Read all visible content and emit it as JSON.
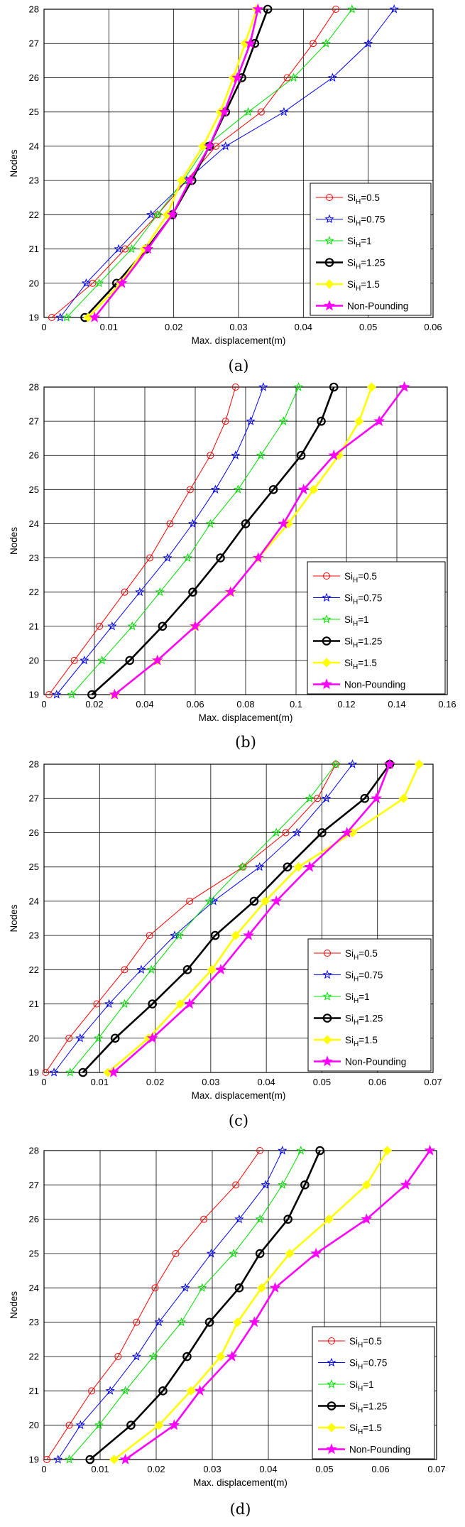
{
  "chart_data": [
    {
      "type": "line",
      "caption": "(a)",
      "xlabel": "Max. displacement(m)",
      "ylabel": "Nodes",
      "xlim": [
        0,
        0.06
      ],
      "ylim": [
        19,
        28
      ],
      "xticks": [
        "0",
        "0.01",
        "0.02",
        "0.03",
        "0.04",
        "0.05",
        "0.06"
      ],
      "yticks": [
        "19",
        "20",
        "21",
        "22",
        "23",
        "24",
        "25",
        "26",
        "27",
        "28"
      ],
      "grid": true,
      "legend_position": "bottom-right",
      "nodes": [
        19,
        20,
        21,
        22,
        23,
        24,
        25,
        26,
        27,
        28
      ],
      "series": [
        {
          "name_main": "Si",
          "name_sub": "H",
          "name_rest": "=0.5",
          "color": "#ff0000",
          "marker": "circle",
          "bold": false,
          "values": [
            0.0012,
            0.0075,
            0.0125,
            0.0175,
            0.022,
            0.0265,
            0.0335,
            0.0375,
            0.0415,
            0.045
          ]
        },
        {
          "name_main": "Si",
          "name_sub": "H",
          "name_rest": "=0.75",
          "color": "#0000ff",
          "marker": "star",
          "bold": false,
          "values": [
            0.0025,
            0.0065,
            0.0115,
            0.0165,
            0.022,
            0.028,
            0.037,
            0.0445,
            0.05,
            0.054
          ]
        },
        {
          "name_main": "Si",
          "name_sub": "H",
          "name_rest": "=1",
          "color": "#00dd00",
          "marker": "star",
          "bold": false,
          "values": [
            0.0035,
            0.0085,
            0.0135,
            0.0175,
            0.0215,
            0.025,
            0.0315,
            0.0385,
            0.0435,
            0.0475
          ]
        },
        {
          "name_main": "Si",
          "name_sub": "H",
          "name_rest": "=1.25",
          "color": "#000000",
          "marker": "circle",
          "bold": true,
          "values": [
            0.0063,
            0.0112,
            0.0158,
            0.0198,
            0.0228,
            0.0255,
            0.028,
            0.0305,
            0.0325,
            0.0345
          ]
        },
        {
          "name_main": "Si",
          "name_sub": "H",
          "name_rest": "=1.5",
          "color": "#ffff00",
          "marker": "diamond",
          "bold": true,
          "values": [
            0.0068,
            0.0118,
            0.0155,
            0.019,
            0.0212,
            0.0245,
            0.0272,
            0.0292,
            0.031,
            0.0328
          ]
        },
        {
          "name_main": "Non-Pounding",
          "name_sub": "",
          "name_rest": "",
          "color": "#ff00ff",
          "marker": "star",
          "bold": true,
          "values": [
            0.0078,
            0.012,
            0.016,
            0.0198,
            0.0225,
            0.0255,
            0.0278,
            0.0298,
            0.0318,
            0.033
          ]
        }
      ]
    },
    {
      "type": "line",
      "caption": "(b)",
      "xlabel": "Max. displacement(m)",
      "ylabel": "Nodes",
      "xlim": [
        0,
        0.16
      ],
      "ylim": [
        19,
        28
      ],
      "xticks": [
        "0",
        "0.02",
        "0.04",
        "0.06",
        "0.08",
        "0.1",
        "0.12",
        "0.14",
        "0.16"
      ],
      "yticks": [
        "19",
        "20",
        "21",
        "22",
        "23",
        "24",
        "25",
        "26",
        "27",
        "28"
      ],
      "grid": true,
      "legend_position": "bottom-right",
      "nodes": [
        19,
        20,
        21,
        22,
        23,
        24,
        25,
        26,
        27,
        28
      ],
      "series": [
        {
          "name_main": "Si",
          "name_sub": "H",
          "name_rest": "=0.5",
          "color": "#ff0000",
          "marker": "circle",
          "bold": false,
          "values": [
            0.002,
            0.012,
            0.022,
            0.032,
            0.042,
            0.05,
            0.058,
            0.066,
            0.072,
            0.076
          ]
        },
        {
          "name_main": "Si",
          "name_sub": "H",
          "name_rest": "=0.75",
          "color": "#0000ff",
          "marker": "star",
          "bold": false,
          "values": [
            0.005,
            0.016,
            0.027,
            0.038,
            0.049,
            0.059,
            0.068,
            0.076,
            0.082,
            0.087
          ]
        },
        {
          "name_main": "Si",
          "name_sub": "H",
          "name_rest": "=1",
          "color": "#00dd00",
          "marker": "star",
          "bold": false,
          "values": [
            0.011,
            0.023,
            0.035,
            0.046,
            0.057,
            0.066,
            0.077,
            0.086,
            0.095,
            0.101
          ]
        },
        {
          "name_main": "Si",
          "name_sub": "H",
          "name_rest": "=1.25",
          "color": "#000000",
          "marker": "circle",
          "bold": true,
          "values": [
            0.019,
            0.034,
            0.047,
            0.059,
            0.07,
            0.08,
            0.091,
            0.102,
            0.11,
            0.115
          ]
        },
        {
          "name_main": "Si",
          "name_sub": "H",
          "name_rest": "=1.5",
          "color": "#ffff00",
          "marker": "diamond",
          "bold": true,
          "values": [
            0.028,
            0.045,
            0.06,
            0.074,
            0.085,
            0.097,
            0.107,
            0.117,
            0.125,
            0.13
          ]
        },
        {
          "name_main": "Non-Pounding",
          "name_sub": "",
          "name_rest": "",
          "color": "#ff00ff",
          "marker": "star",
          "bold": true,
          "values": [
            0.028,
            0.045,
            0.06,
            0.074,
            0.085,
            0.095,
            0.103,
            0.115,
            0.133,
            0.143
          ]
        }
      ]
    },
    {
      "type": "line",
      "caption": "(c)",
      "xlabel": "Max. displacement(m)",
      "ylabel": "Nodes",
      "xlim": [
        0,
        0.07
      ],
      "ylim": [
        19,
        28
      ],
      "xticks": [
        "0",
        "0.01",
        "0.02",
        "0.03",
        "0.04",
        "0.05",
        "0.06",
        "0.07"
      ],
      "yticks": [
        "19",
        "20",
        "21",
        "22",
        "23",
        "24",
        "25",
        "26",
        "27",
        "28"
      ],
      "grid": true,
      "legend_position": "bottom-right",
      "nodes": [
        19,
        20,
        21,
        22,
        23,
        24,
        25,
        26,
        27,
        28
      ],
      "series": [
        {
          "name_main": "Si",
          "name_sub": "H",
          "name_rest": "=0.5",
          "color": "#ff0000",
          "marker": "circle",
          "bold": false,
          "values": [
            0.0003,
            0.0045,
            0.0095,
            0.0145,
            0.019,
            0.0262,
            0.0358,
            0.0435,
            0.0492,
            0.0525
          ]
        },
        {
          "name_main": "Si",
          "name_sub": "H",
          "name_rest": "=0.75",
          "color": "#0000ff",
          "marker": "star",
          "bold": false,
          "values": [
            0.0018,
            0.0065,
            0.0117,
            0.0175,
            0.0235,
            0.0305,
            0.0388,
            0.0455,
            0.0508,
            0.0555
          ]
        },
        {
          "name_main": "Si",
          "name_sub": "H",
          "name_rest": "=1",
          "color": "#00dd00",
          "marker": "star",
          "bold": false,
          "values": [
            0.0047,
            0.0098,
            0.0145,
            0.0193,
            0.0243,
            0.0298,
            0.0357,
            0.0418,
            0.0478,
            0.0525
          ]
        },
        {
          "name_main": "Si",
          "name_sub": "H",
          "name_rest": "=1.25",
          "color": "#000000",
          "marker": "circle",
          "bold": true,
          "values": [
            0.007,
            0.0128,
            0.0195,
            0.0258,
            0.0308,
            0.0378,
            0.0438,
            0.05,
            0.0577,
            0.0622
          ]
        },
        {
          "name_main": "Si",
          "name_sub": "H",
          "name_rest": "=1.5",
          "color": "#ffff00",
          "marker": "diamond",
          "bold": true,
          "values": [
            0.0115,
            0.0188,
            0.0245,
            0.0302,
            0.0345,
            0.0398,
            0.0458,
            0.0555,
            0.0647,
            0.0675
          ]
        },
        {
          "name_main": "Non-Pounding",
          "name_sub": "",
          "name_rest": "",
          "color": "#ff00ff",
          "marker": "star",
          "bold": true,
          "values": [
            0.0125,
            0.0195,
            0.0262,
            0.0318,
            0.0368,
            0.0418,
            0.0478,
            0.0545,
            0.0598,
            0.0622
          ]
        }
      ]
    },
    {
      "type": "line",
      "caption": "(d)",
      "xlabel": "Max. displacement(m)",
      "ylabel": "Nodes",
      "xlim": [
        0,
        0.07
      ],
      "ylim": [
        19,
        28
      ],
      "xticks": [
        "0",
        "0.01",
        "0.02",
        "0.03",
        "0.04",
        "0.05",
        "0.06",
        "0.07"
      ],
      "yticks": [
        "19",
        "20",
        "21",
        "22",
        "23",
        "24",
        "25",
        "26",
        "27",
        "28"
      ],
      "grid": true,
      "legend_position": "bottom-right",
      "nodes": [
        19,
        20,
        21,
        22,
        23,
        24,
        25,
        26,
        27,
        28
      ],
      "series": [
        {
          "name_main": "Si",
          "name_sub": "H",
          "name_rest": "=0.5",
          "color": "#ff0000",
          "marker": "circle",
          "bold": false,
          "values": [
            0.0005,
            0.0045,
            0.0085,
            0.0132,
            0.0165,
            0.0198,
            0.0235,
            0.0285,
            0.0342,
            0.0385
          ]
        },
        {
          "name_main": "Si",
          "name_sub": "H",
          "name_rest": "=0.75",
          "color": "#0000ff",
          "marker": "star",
          "bold": false,
          "values": [
            0.0025,
            0.0065,
            0.0118,
            0.0165,
            0.0205,
            0.0252,
            0.0298,
            0.0348,
            0.0395,
            0.0425
          ]
        },
        {
          "name_main": "Si",
          "name_sub": "H",
          "name_rest": "=1",
          "color": "#00dd00",
          "marker": "star",
          "bold": false,
          "values": [
            0.0045,
            0.0098,
            0.0145,
            0.0195,
            0.0245,
            0.0282,
            0.0338,
            0.0385,
            0.0425,
            0.0458
          ]
        },
        {
          "name_main": "Si",
          "name_sub": "H",
          "name_rest": "=1.25",
          "color": "#000000",
          "marker": "circle",
          "bold": true,
          "values": [
            0.0082,
            0.0155,
            0.0212,
            0.0255,
            0.0295,
            0.0348,
            0.0385,
            0.0435,
            0.0465,
            0.0492
          ]
        },
        {
          "name_main": "Si",
          "name_sub": "H",
          "name_rest": "=1.5",
          "color": "#ffff00",
          "marker": "diamond",
          "bold": true,
          "values": [
            0.0125,
            0.0205,
            0.0262,
            0.0315,
            0.0345,
            0.0388,
            0.0438,
            0.0508,
            0.0575,
            0.0612
          ]
        },
        {
          "name_main": "Non-Pounding",
          "name_sub": "",
          "name_rest": "",
          "color": "#ff00ff",
          "marker": "star",
          "bold": true,
          "values": [
            0.0145,
            0.0232,
            0.0278,
            0.0335,
            0.0375,
            0.0412,
            0.0485,
            0.0575,
            0.0645,
            0.0688
          ]
        }
      ]
    }
  ]
}
